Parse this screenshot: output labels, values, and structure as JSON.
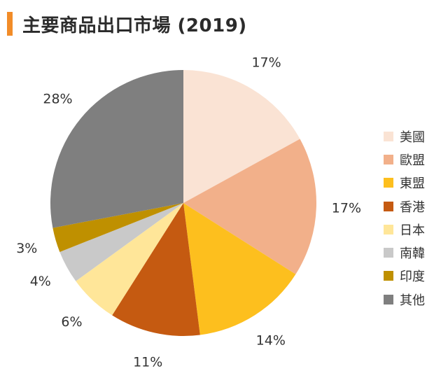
{
  "page": {
    "title": "主要商品出口市場 (2019)",
    "accent_color": "#f28c28"
  },
  "chart_data": {
    "type": "pie",
    "title": "主要商品出口市場 (2019)",
    "unit": "%",
    "start_angle_deg": 0,
    "direction": "clockwise",
    "legend_position": "right",
    "slices": [
      {
        "name": "美國",
        "value": 17,
        "label": "17%",
        "color": "#fae3d4"
      },
      {
        "name": "歐盟",
        "value": 17,
        "label": "17%",
        "color": "#f2b08a"
      },
      {
        "name": "東盟",
        "value": 14,
        "label": "14%",
        "color": "#fdbf1e"
      },
      {
        "name": "香港",
        "value": 11,
        "label": "11%",
        "color": "#c55a11"
      },
      {
        "name": "日本",
        "value": 6,
        "label": "6%",
        "color": "#ffe699"
      },
      {
        "name": "南韓",
        "value": 4,
        "label": "4%",
        "color": "#c9c9c9"
      },
      {
        "name": "印度",
        "value": 3,
        "label": "3%",
        "color": "#bf9000"
      },
      {
        "name": "其他",
        "value": 28,
        "label": "28%",
        "color": "#7f7f7f"
      }
    ]
  }
}
